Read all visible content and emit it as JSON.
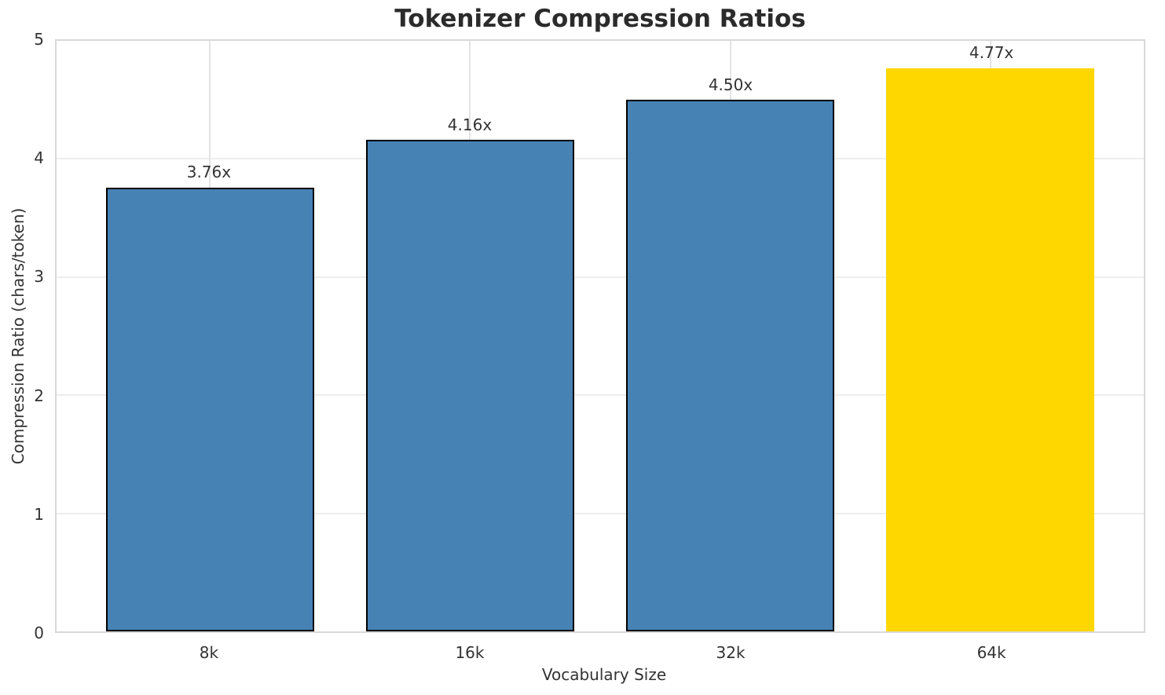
{
  "chart_data": {
    "type": "bar",
    "title": "Tokenizer Compression Ratios",
    "xlabel": "Vocabulary Size",
    "ylabel": "Compression Ratio (chars/token)",
    "categories": [
      "8k",
      "16k",
      "32k",
      "64k"
    ],
    "values": [
      3.76,
      4.16,
      4.5,
      4.77
    ],
    "bar_labels": [
      "3.76x",
      "4.16x",
      "4.50x",
      "4.77x"
    ],
    "ylim": [
      0,
      5
    ],
    "yticks": [
      "0",
      "1",
      "2",
      "3",
      "4",
      "5"
    ],
    "grid": "on",
    "legend": "none",
    "colors": {
      "bar_base": "#4682B4",
      "bar_highlight": "#FFD700",
      "bar_edge": "#000000",
      "text": "#333333",
      "title_text": "#2b2b2b",
      "gridline": "#ededed",
      "spine": "#d9d9d9"
    },
    "bar_fill_colors": [
      "#4682B4",
      "#4682B4",
      "#4682B4",
      "#FFD700"
    ],
    "bar_edge_colors": [
      "#000000",
      "#000000",
      "#000000",
      "none"
    ]
  }
}
